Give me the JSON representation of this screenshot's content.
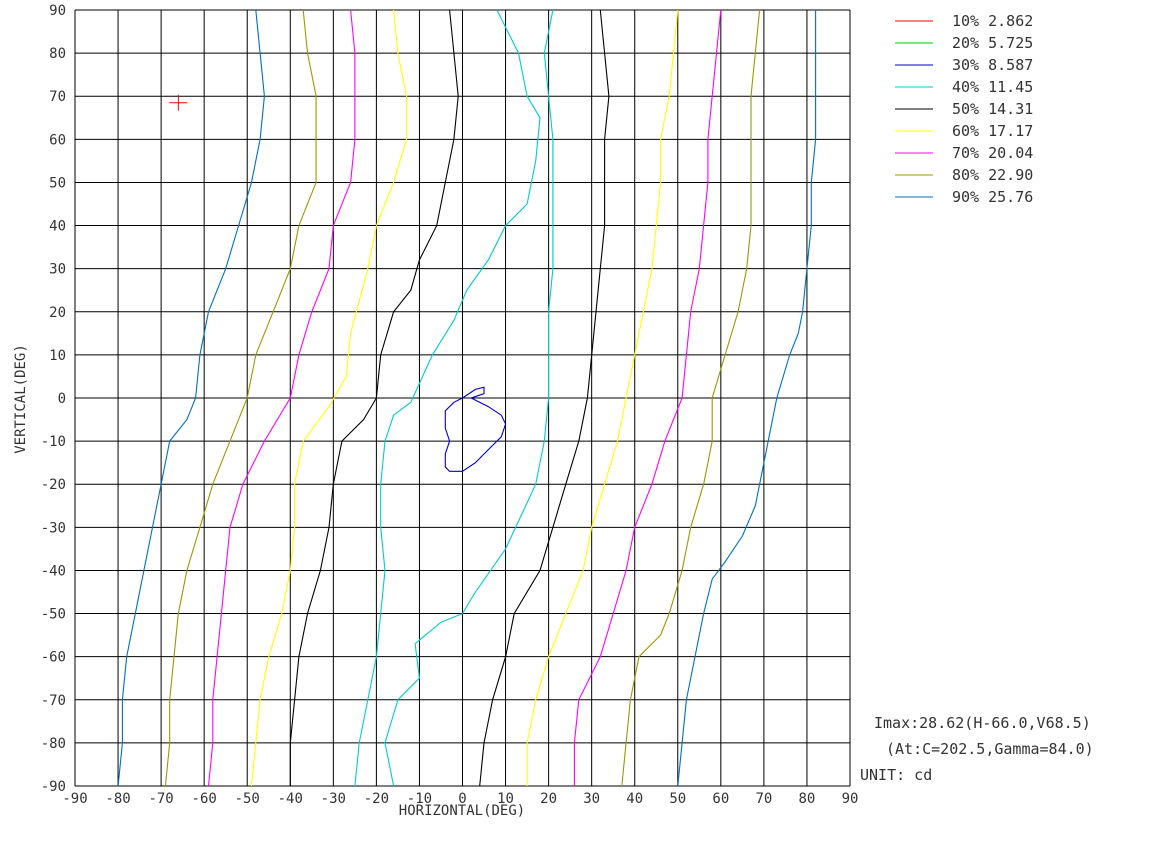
{
  "chart_data": {
    "type": "line",
    "title": "",
    "xlabel": "HORIZONTAL(DEG)",
    "ylabel": "VERTICAL(DEG)",
    "xlim": [
      -90,
      90
    ],
    "ylim": [
      -90,
      90
    ],
    "x_ticks": [
      "-90",
      "-80",
      "-70",
      "-60",
      "-50",
      "-40",
      "-30",
      "-20",
      "-10",
      "0",
      "10",
      "20",
      "30",
      "40",
      "50",
      "60",
      "70",
      "80",
      "90"
    ],
    "y_ticks": [
      "90",
      "80",
      "70",
      "60",
      "50",
      "40",
      "30",
      "20",
      "10",
      "0",
      "-10",
      "-20",
      "-30",
      "-40",
      "-50",
      "-60",
      "-70",
      "-80",
      "-90"
    ],
    "grid": true,
    "legend_position": "top-right",
    "series": [
      {
        "name": "10% 2.862",
        "color": "#ff0000",
        "points": []
      },
      {
        "name": "20% 5.725",
        "color": "#00cc00",
        "points": []
      },
      {
        "name": "30% 8.587",
        "color": "#0000cc",
        "points": [
          [
            0,
            0
          ],
          [
            3,
            2
          ],
          [
            5,
            2.5
          ],
          [
            5,
            1
          ],
          [
            2,
            0
          ],
          [
            6,
            -2
          ],
          [
            9,
            -4
          ],
          [
            10,
            -6
          ],
          [
            9,
            -9
          ],
          [
            7,
            -11
          ],
          [
            5,
            -13
          ],
          [
            3,
            -15
          ],
          [
            0,
            -17
          ],
          [
            -3,
            -17
          ],
          [
            -4,
            -16
          ],
          [
            -4,
            -13
          ],
          [
            -3,
            -10
          ],
          [
            -4,
            -7
          ],
          [
            -4,
            -3
          ],
          [
            -2,
            -1
          ],
          [
            0,
            0
          ]
        ]
      },
      {
        "name": "40% 11.45",
        "color": "#00cccc",
        "points": [
          [
            -25,
            -90
          ],
          [
            -24,
            -80
          ],
          [
            -22,
            -70
          ],
          [
            -20,
            -60
          ],
          [
            -19,
            -50
          ],
          [
            -18,
            -40
          ],
          [
            -19,
            -30
          ],
          [
            -19,
            -20
          ],
          [
            -18,
            -10
          ],
          [
            -16,
            -4
          ],
          [
            -12,
            -1
          ],
          [
            -7,
            10
          ],
          [
            -2,
            18
          ],
          [
            1,
            25
          ],
          [
            6,
            32
          ],
          [
            10,
            40
          ],
          [
            15,
            45
          ],
          [
            17,
            55
          ],
          [
            18,
            65
          ],
          [
            15,
            70
          ],
          [
            13,
            80
          ],
          [
            8,
            90
          ]
        ]
      },
      {
        "name": "40% 11.45",
        "color": "#00cccc",
        "points": [
          [
            -16,
            -90
          ],
          [
            -18,
            -80
          ],
          [
            -15,
            -70
          ],
          [
            -10,
            -65
          ],
          [
            -11,
            -57
          ],
          [
            -5,
            -52
          ],
          [
            0,
            -50
          ],
          [
            3,
            -45
          ],
          [
            10,
            -35
          ],
          [
            17,
            -20
          ],
          [
            19,
            -10
          ],
          [
            20,
            0
          ],
          [
            20,
            10
          ],
          [
            20,
            20
          ],
          [
            21,
            30
          ],
          [
            21,
            40
          ],
          [
            21,
            50
          ],
          [
            21,
            60
          ],
          [
            20,
            70
          ],
          [
            19,
            80
          ],
          [
            21,
            90
          ]
        ]
      },
      {
        "name": "50% 14.31",
        "color": "#000000",
        "points": [
          [
            -40,
            -90
          ],
          [
            -40,
            -80
          ],
          [
            -39,
            -70
          ],
          [
            -38,
            -60
          ],
          [
            -36,
            -50
          ],
          [
            -33,
            -40
          ],
          [
            -31,
            -30
          ],
          [
            -30,
            -20
          ],
          [
            -28,
            -10
          ],
          [
            -23,
            -5
          ],
          [
            -20,
            0
          ],
          [
            -19,
            10
          ],
          [
            -16,
            20
          ],
          [
            -12,
            25
          ],
          [
            -10,
            32
          ],
          [
            -6,
            40
          ],
          [
            -4,
            50
          ],
          [
            -2,
            60
          ],
          [
            -1,
            70
          ],
          [
            -2,
            80
          ],
          [
            -3,
            90
          ]
        ]
      },
      {
        "name": "50% 14.31",
        "color": "#000000",
        "points": [
          [
            4,
            -90
          ],
          [
            5,
            -80
          ],
          [
            7,
            -70
          ],
          [
            10,
            -60
          ],
          [
            12,
            -50
          ],
          [
            18,
            -40
          ],
          [
            21,
            -30
          ],
          [
            24,
            -20
          ],
          [
            27,
            -10
          ],
          [
            29,
            0
          ],
          [
            30,
            10
          ],
          [
            31,
            20
          ],
          [
            32,
            30
          ],
          [
            33,
            40
          ],
          [
            33,
            50
          ],
          [
            33,
            60
          ],
          [
            34,
            70
          ],
          [
            33,
            80
          ],
          [
            32,
            90
          ]
        ]
      },
      {
        "name": "60% 17.17",
        "color": "#ffff00",
        "points": [
          [
            -49,
            -90
          ],
          [
            -48,
            -80
          ],
          [
            -47,
            -70
          ],
          [
            -45,
            -60
          ],
          [
            -42,
            -50
          ],
          [
            -40,
            -40
          ],
          [
            -39,
            -30
          ],
          [
            -39,
            -20
          ],
          [
            -37,
            -10
          ],
          [
            -31,
            -2
          ],
          [
            -27,
            5
          ],
          [
            -26,
            15
          ],
          [
            -22,
            30
          ],
          [
            -20,
            40
          ],
          [
            -16,
            50
          ],
          [
            -13,
            60
          ],
          [
            -13,
            70
          ],
          [
            -15,
            80
          ],
          [
            -16,
            90
          ]
        ]
      },
      {
        "name": "60% 17.17",
        "color": "#ffff00",
        "points": [
          [
            15,
            -90
          ],
          [
            15,
            -80
          ],
          [
            17,
            -70
          ],
          [
            20,
            -60
          ],
          [
            24,
            -50
          ],
          [
            28,
            -40
          ],
          [
            30,
            -30
          ],
          [
            33,
            -20
          ],
          [
            36,
            -10
          ],
          [
            38,
            0
          ],
          [
            40,
            10
          ],
          [
            42,
            20
          ],
          [
            44,
            30
          ],
          [
            45,
            40
          ],
          [
            46,
            50
          ],
          [
            46,
            60
          ],
          [
            48,
            70
          ],
          [
            49,
            80
          ],
          [
            50,
            90
          ]
        ]
      },
      {
        "name": "70% 20.04",
        "color": "#ff00ff",
        "points": [
          [
            -59,
            -90
          ],
          [
            -58,
            -80
          ],
          [
            -58,
            -70
          ],
          [
            -57,
            -60
          ],
          [
            -56,
            -50
          ],
          [
            -55,
            -40
          ],
          [
            -54,
            -30
          ],
          [
            -51,
            -20
          ],
          [
            -46,
            -10
          ],
          [
            -40,
            0
          ],
          [
            -38,
            10
          ],
          [
            -35,
            20
          ],
          [
            -31,
            30
          ],
          [
            -30,
            40
          ],
          [
            -26,
            50
          ],
          [
            -25,
            60
          ],
          [
            -25,
            70
          ],
          [
            -25,
            80
          ],
          [
            -26,
            90
          ]
        ]
      },
      {
        "name": "70% 20.04",
        "color": "#ff00ff",
        "points": [
          [
            26,
            -90
          ],
          [
            26,
            -80
          ],
          [
            27,
            -70
          ],
          [
            32,
            -60
          ],
          [
            35,
            -50
          ],
          [
            38,
            -40
          ],
          [
            40,
            -30
          ],
          [
            44,
            -20
          ],
          [
            47,
            -10
          ],
          [
            51,
            0
          ],
          [
            52,
            10
          ],
          [
            53,
            20
          ],
          [
            55,
            30
          ],
          [
            56,
            40
          ],
          [
            57,
            50
          ],
          [
            57,
            60
          ],
          [
            58,
            70
          ],
          [
            59,
            80
          ],
          [
            60,
            90
          ]
        ]
      },
      {
        "name": "80% 22.90",
        "color": "#999900",
        "points": [
          [
            -69,
            -90
          ],
          [
            -68,
            -80
          ],
          [
            -68,
            -70
          ],
          [
            -67,
            -60
          ],
          [
            -66,
            -50
          ],
          [
            -64,
            -40
          ],
          [
            -61,
            -30
          ],
          [
            -58,
            -20
          ],
          [
            -54,
            -10
          ],
          [
            -50,
            0
          ],
          [
            -48,
            10
          ],
          [
            -44,
            20
          ],
          [
            -40,
            30
          ],
          [
            -38,
            40
          ],
          [
            -34,
            50
          ],
          [
            -34,
            60
          ],
          [
            -34,
            70
          ],
          [
            -36,
            80
          ],
          [
            -37,
            90
          ]
        ]
      },
      {
        "name": "80% 22.90",
        "color": "#999900",
        "points": [
          [
            37,
            -90
          ],
          [
            38,
            -80
          ],
          [
            39,
            -70
          ],
          [
            41,
            -60
          ],
          [
            46,
            -55
          ],
          [
            48,
            -50
          ],
          [
            51,
            -40
          ],
          [
            53,
            -30
          ],
          [
            56,
            -20
          ],
          [
            58,
            -10
          ],
          [
            58,
            0
          ],
          [
            61,
            10
          ],
          [
            64,
            20
          ],
          [
            66,
            30
          ],
          [
            67,
            40
          ],
          [
            67,
            50
          ],
          [
            67,
            60
          ],
          [
            67,
            70
          ],
          [
            68,
            80
          ],
          [
            69,
            90
          ]
        ]
      },
      {
        "name": "90% 25.76",
        "color": "#0070c0",
        "points": [
          [
            -80,
            -90
          ],
          [
            -79,
            -80
          ],
          [
            -79,
            -70
          ],
          [
            -78,
            -60
          ],
          [
            -76,
            -50
          ],
          [
            -74,
            -40
          ],
          [
            -72,
            -30
          ],
          [
            -70,
            -20
          ],
          [
            -68,
            -10
          ],
          [
            -64,
            -5
          ],
          [
            -62,
            0
          ],
          [
            -61,
            10
          ],
          [
            -59,
            20
          ],
          [
            -55,
            30
          ],
          [
            -52,
            40
          ],
          [
            -49,
            50
          ],
          [
            -47,
            60
          ],
          [
            -46,
            70
          ],
          [
            -47,
            80
          ],
          [
            -48,
            90
          ]
        ]
      },
      {
        "name": "90% 25.76",
        "color": "#0070c0",
        "points": [
          [
            50,
            -90
          ],
          [
            51,
            -80
          ],
          [
            52,
            -70
          ],
          [
            54,
            -60
          ],
          [
            56,
            -50
          ],
          [
            58,
            -42
          ],
          [
            61,
            -38
          ],
          [
            65,
            -32
          ],
          [
            68,
            -25
          ],
          [
            70,
            -15
          ],
          [
            71,
            -10
          ],
          [
            73,
            0
          ],
          [
            76,
            10
          ],
          [
            78,
            15
          ],
          [
            79,
            20
          ],
          [
            80,
            30
          ],
          [
            81,
            40
          ],
          [
            81,
            50
          ],
          [
            82,
            60
          ],
          [
            82,
            70
          ],
          [
            82,
            80
          ],
          [
            82,
            90
          ]
        ]
      }
    ],
    "marker": {
      "x": -66.0,
      "y": 68.5,
      "color": "#ff0000",
      "symbol": "cross"
    }
  },
  "legend": [
    {
      "label": "10% 2.862",
      "color": "#ff0000"
    },
    {
      "label": "20% 5.725",
      "color": "#00cc00"
    },
    {
      "label": "30% 8.587",
      "color": "#0000cc"
    },
    {
      "label": "40% 11.45",
      "color": "#00cccc"
    },
    {
      "label": "50% 14.31",
      "color": "#000000"
    },
    {
      "label": "60% 17.17",
      "color": "#ffff00"
    },
    {
      "label": "70% 20.04",
      "color": "#ff00ff"
    },
    {
      "label": "80% 22.90",
      "color": "#999900"
    },
    {
      "label": "90% 25.76",
      "color": "#0070c0"
    }
  ],
  "info": {
    "imax": "Imax:28.62(H-66.0,V68.5)",
    "at": "(At:C=202.5,Gamma=84.0)",
    "unit": "UNIT: cd"
  }
}
